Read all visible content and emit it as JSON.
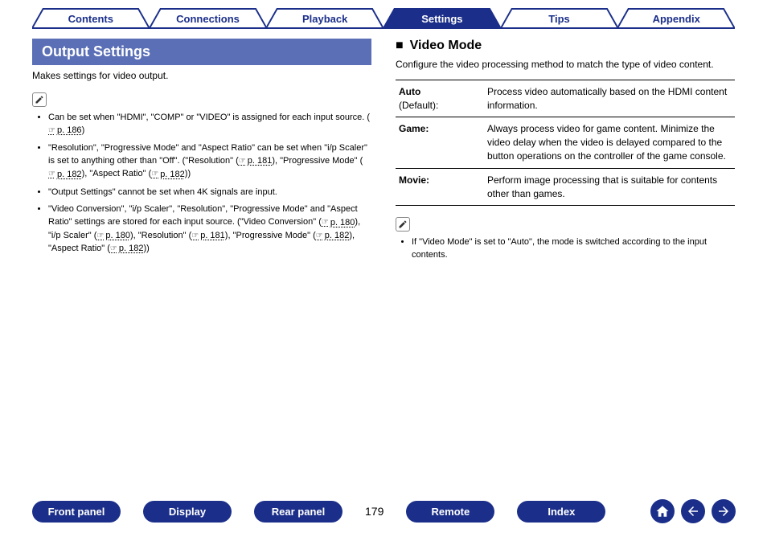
{
  "colors": {
    "primary": "#1b2f8a",
    "banner": "#5a6fb6",
    "text": "#000000",
    "white": "#ffffff"
  },
  "tabs": [
    {
      "label": "Contents",
      "active": false
    },
    {
      "label": "Connections",
      "active": false
    },
    {
      "label": "Playback",
      "active": false
    },
    {
      "label": "Settings",
      "active": true
    },
    {
      "label": "Tips",
      "active": false
    },
    {
      "label": "Appendix",
      "active": false
    }
  ],
  "left": {
    "title": "Output Settings",
    "desc": "Makes settings for video output.",
    "notes": [
      {
        "parts": [
          {
            "t": "Can be set when \"HDMI\", \"COMP\" or \"VIDEO\" is assigned for each input source. ("
          },
          {
            "ref": "p. 186"
          },
          {
            "t": ")"
          }
        ]
      },
      {
        "parts": [
          {
            "t": "\"Resolution\", \"Progressive Mode\" and \"Aspect Ratio\" can be set when \"i/p Scaler\" is set to anything other than \"Off\". (\"Resolution\" ("
          },
          {
            "ref": "p. 181"
          },
          {
            "t": "), \"Progressive Mode\" ("
          },
          {
            "ref": "p. 182"
          },
          {
            "t": "), \"Aspect Ratio\" ("
          },
          {
            "ref": "p. 182"
          },
          {
            "t": "))"
          }
        ]
      },
      {
        "parts": [
          {
            "t": "\"Output Settings\" cannot be set when 4K signals are input."
          }
        ]
      },
      {
        "parts": [
          {
            "t": "\"Video Conversion\", \"i/p Scaler\", \"Resolution\", \"Progressive Mode\" and \"Aspect Ratio\" settings are stored for each input source. (\"Video Conversion\" ("
          },
          {
            "ref": "p. 180"
          },
          {
            "t": "), \"i/p Scaler\" ("
          },
          {
            "ref": "p. 180"
          },
          {
            "t": "), \"Resolution\" ("
          },
          {
            "ref": "p. 181"
          },
          {
            "t": "), \"Progressive Mode\" ("
          },
          {
            "ref": "p. 182"
          },
          {
            "t": "), \"Aspect Ratio\" ("
          },
          {
            "ref": "p. 182"
          },
          {
            "t": "))"
          }
        ]
      }
    ]
  },
  "right": {
    "title": "Video Mode",
    "desc": "Configure the video processing method to match the type of video content.",
    "options": [
      {
        "key": "Auto",
        "sub": "(Default):",
        "val": "Process video automatically based on the HDMI content information."
      },
      {
        "key": "Game:",
        "sub": "",
        "val": "Always process video for game content. Minimize the video delay when the video is delayed compared to the button operations on the controller of the game console."
      },
      {
        "key": "Movie:",
        "sub": "",
        "val": "Perform image processing that is suitable for contents other than games."
      }
    ],
    "note": "If \"Video Mode\" is set to \"Auto\", the mode is switched according to the input contents."
  },
  "bottom": {
    "buttons_left": [
      "Front panel",
      "Display",
      "Rear panel"
    ],
    "page": "179",
    "buttons_right": [
      "Remote",
      "Index"
    ]
  }
}
